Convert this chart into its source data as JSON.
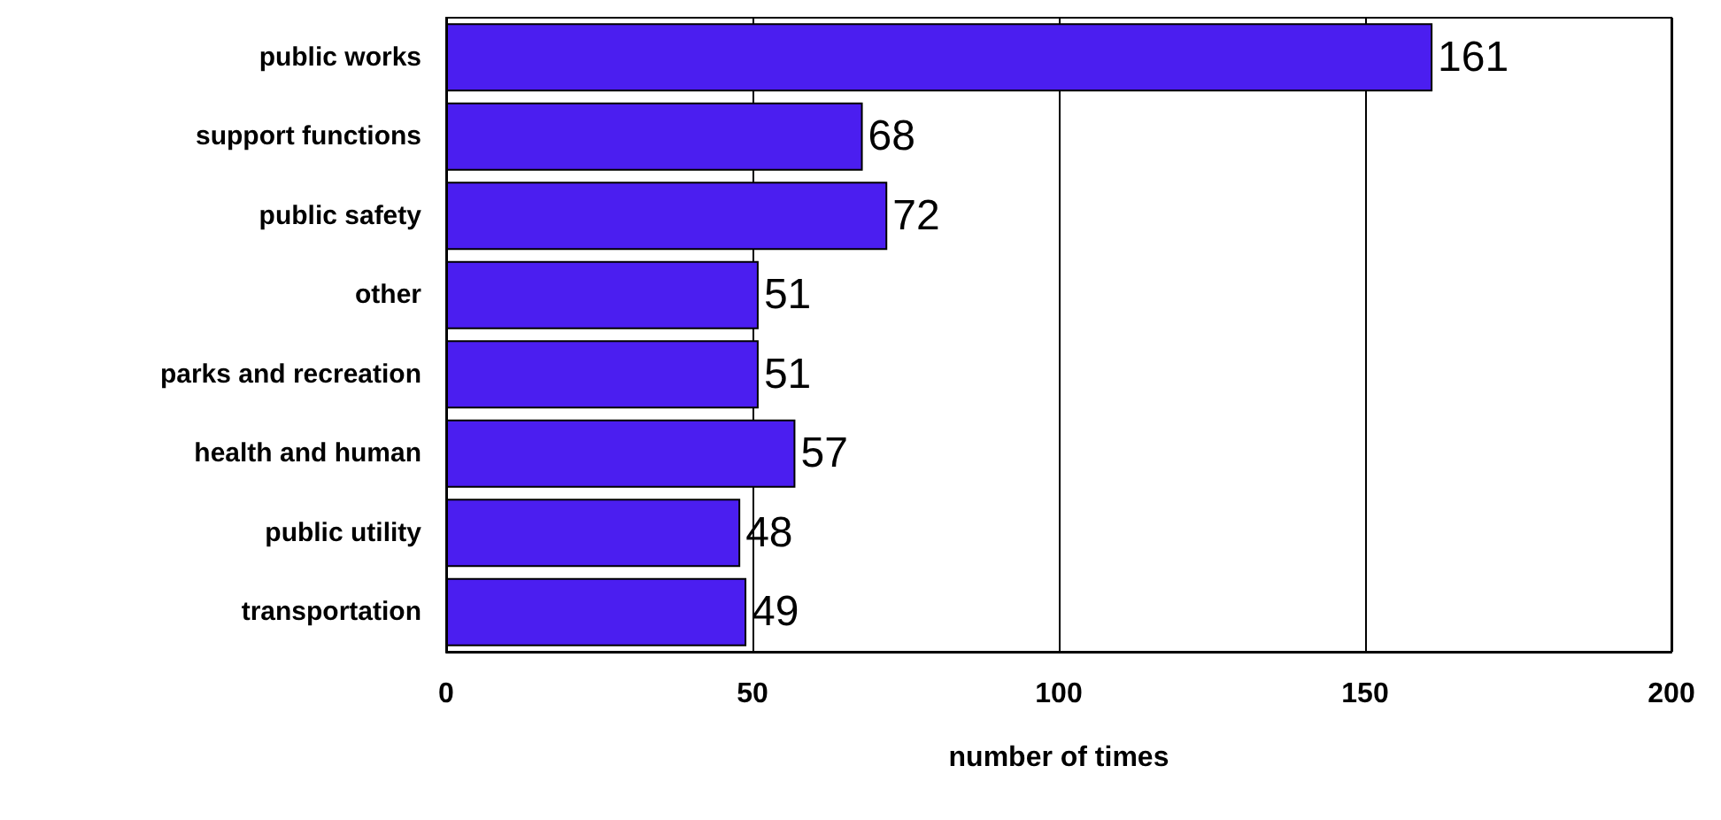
{
  "chart_data": {
    "type": "bar",
    "orientation": "horizontal",
    "xlabel": "number of times",
    "categories": [
      "public works",
      "support functions",
      "public safety",
      "other",
      "parks and recreation",
      "health and human",
      "public utility",
      "transportation"
    ],
    "values": [
      161,
      68,
      72,
      51,
      51,
      57,
      48,
      49
    ],
    "color": "#4b1ef0",
    "xlim": [
      0,
      200
    ],
    "xticks": [
      0,
      50,
      100,
      150,
      200
    ],
    "grid": "x",
    "data_labels": true
  }
}
